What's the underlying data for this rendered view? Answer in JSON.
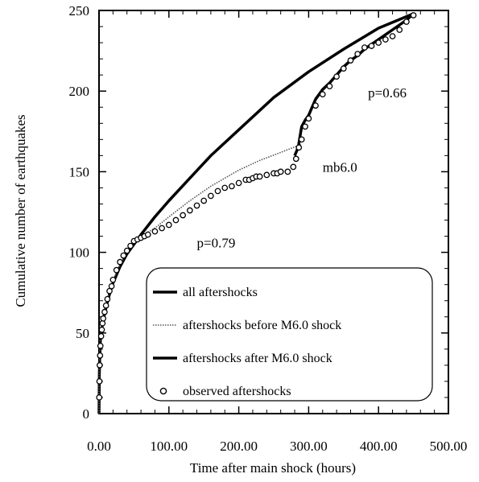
{
  "chart_data": {
    "type": "line",
    "title": "",
    "xlabel": "Time after main shock (hours)",
    "ylabel": "Cumulative number of earthquakes",
    "xlim": [
      0,
      500
    ],
    "ylim": [
      0,
      250
    ],
    "x_ticks": [
      0,
      100,
      200,
      300,
      400,
      500
    ],
    "x_tick_labels": [
      "0.00",
      "100.00",
      "200.00",
      "300.00",
      "400.00",
      "500.00"
    ],
    "y_ticks": [
      0,
      50,
      100,
      150,
      200,
      250
    ],
    "y_tick_labels": [
      "0",
      "50",
      "100",
      "150",
      "200",
      "250"
    ],
    "grid": false,
    "legend_position": "bottom-right",
    "annotations": [
      {
        "text": "p=0.66",
        "x": 385,
        "y": 196
      },
      {
        "text": "mb6.0",
        "x": 320,
        "y": 150
      },
      {
        "text": "p=0.79",
        "x": 140,
        "y": 103
      }
    ],
    "series": [
      {
        "name": "all aftershocks",
        "style": "thick-line",
        "x": [
          0,
          0.5,
          1,
          2,
          4,
          6,
          10,
          15,
          20,
          30,
          40,
          50,
          60,
          80,
          100,
          130,
          160,
          200,
          250,
          300,
          350,
          400,
          450
        ],
        "y": [
          0,
          25,
          34,
          45,
          53,
          58,
          66,
          74,
          81,
          91,
          99,
          105,
          111,
          122,
          132,
          146,
          160,
          176,
          196,
          212,
          226,
          239,
          248
        ]
      },
      {
        "name": "aftershocks before M6.0 shock",
        "style": "dotted-line",
        "x": [
          0,
          0.5,
          1,
          2,
          4,
          6,
          10,
          15,
          20,
          30,
          40,
          50,
          60,
          80,
          100,
          130,
          160,
          200,
          230,
          260,
          290
        ],
        "y": [
          0,
          27,
          38,
          48,
          56,
          61,
          68,
          75,
          82,
          92,
          100,
          106,
          110,
          115,
          122,
          132,
          141,
          151,
          157,
          162,
          167
        ]
      },
      {
        "name": "aftershocks after M6.0 shock",
        "style": "thick-line",
        "x": [
          280,
          285,
          290,
          295,
          300,
          305,
          310,
          320,
          330,
          340,
          350,
          360,
          370,
          380,
          390,
          400,
          410,
          420,
          430,
          440,
          450
        ],
        "y": [
          160,
          165,
          178,
          182,
          185,
          190,
          195,
          201,
          205,
          210,
          215,
          219,
          222,
          226,
          229,
          232,
          235,
          238,
          241,
          244,
          248
        ]
      },
      {
        "name": "observed aftershocks",
        "style": "open-circles",
        "x": [
          0.3,
          0.6,
          1,
          1.5,
          2,
          3,
          4,
          5,
          6,
          8,
          10,
          12,
          15,
          18,
          20,
          25,
          30,
          35,
          40,
          45,
          50,
          55,
          60,
          65,
          70,
          80,
          90,
          100,
          110,
          120,
          130,
          140,
          150,
          160,
          170,
          180,
          190,
          200,
          210,
          215,
          220,
          225,
          230,
          240,
          250,
          255,
          260,
          270,
          278,
          282,
          286,
          290,
          295,
          300,
          310,
          320,
          330,
          340,
          350,
          360,
          370,
          380,
          390,
          400,
          410,
          420,
          430,
          440,
          450
        ],
        "y": [
          10,
          20,
          30,
          36,
          42,
          48,
          52,
          56,
          59,
          63,
          67,
          71,
          76,
          79,
          83,
          89,
          94,
          98,
          101,
          104,
          107,
          108,
          109,
          110,
          111,
          113,
          115,
          117,
          120,
          123,
          126,
          129,
          132,
          135,
          138,
          140,
          141,
          143,
          145,
          145,
          146,
          147,
          147,
          148,
          149,
          149,
          150,
          150,
          153,
          158,
          165,
          170,
          178,
          183,
          191,
          198,
          203,
          209,
          214,
          219,
          223,
          227,
          228,
          230,
          232,
          234,
          238,
          243,
          247
        ]
      }
    ]
  }
}
